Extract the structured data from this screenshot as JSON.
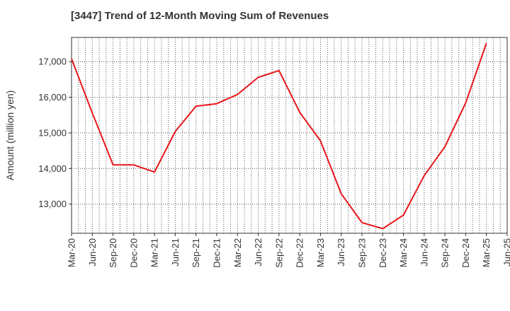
{
  "chart_data": {
    "type": "line",
    "title": "[3447]  Trend of 12-Month Moving Sum of Revenues",
    "ylabel": "Amount (million yen)",
    "xlabel": "",
    "x": [
      "Mar-20",
      "Jun-20",
      "Sep-20",
      "Dec-20",
      "Mar-21",
      "Jun-21",
      "Sep-21",
      "Dec-21",
      "Mar-22",
      "Jun-22",
      "Sep-22",
      "Dec-22",
      "Mar-23",
      "Jun-23",
      "Sep-23",
      "Dec-23",
      "Mar-24",
      "Jun-24",
      "Sep-24",
      "Dec-24",
      "Mar-25",
      "Jun-25"
    ],
    "yticks": [
      13000,
      14000,
      15000,
      16000,
      17000
    ],
    "ytick_labels": [
      "13,000",
      "14,000",
      "15,000",
      "16,000",
      "17,000"
    ],
    "ylim": [
      12180,
      17680
    ],
    "series": [
      {
        "color": "#e8161b",
        "values": [
          17080,
          15560,
          14100,
          14100,
          13900,
          15040,
          15750,
          15820,
          16080,
          16560,
          16750,
          15580,
          14780,
          13290,
          12480,
          12310,
          12690,
          13800,
          14610,
          15840,
          17520,
          null
        ]
      }
    ],
    "grid": true,
    "minor_x_grid": true,
    "legend": "none"
  }
}
